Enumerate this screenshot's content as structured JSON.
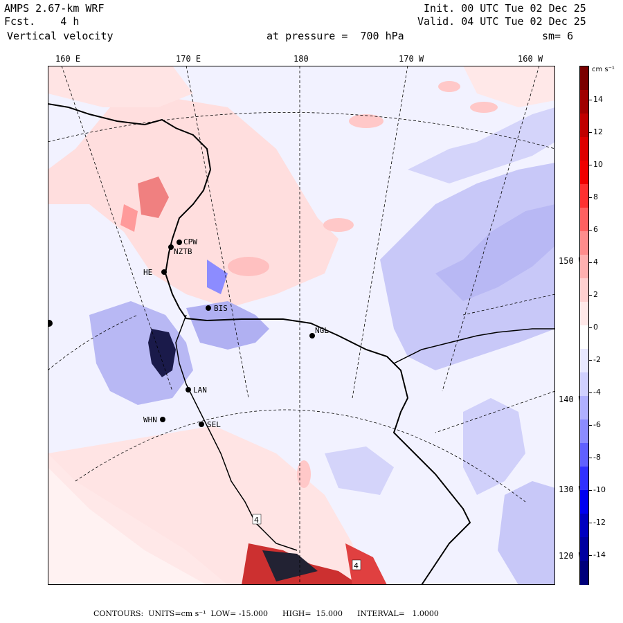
{
  "header": {
    "model": "AMPS 2.67-km WRF",
    "fcst": "Fcst.    4 h",
    "field": "Vertical velocity",
    "init": "Init. 00 UTC Tue 02 Dec 25",
    "valid": "Valid. 04 UTC Tue 02 Dec 25",
    "pressure": "at pressure =  700 hPa",
    "smooth": "sm= 6"
  },
  "lon_labels": [
    "160 E",
    "170 E",
    "180",
    "170 W",
    "160 W"
  ],
  "lat_labels_right": [
    "150 W",
    "140 W",
    "130 W",
    "120 W"
  ],
  "stations": [
    {
      "id": "CPW"
    },
    {
      "id": "NZTB"
    },
    {
      "id": "HE"
    },
    {
      "id": "BIS"
    },
    {
      "id": "NGL"
    },
    {
      "id": "LAN"
    },
    {
      "id": "WHN"
    },
    {
      "id": "SEL"
    }
  ],
  "contour_labels": [
    "4",
    "4"
  ],
  "colorbar": {
    "units": "cm s⁻¹",
    "labels": [
      "14",
      "12",
      "10",
      "8",
      "6",
      "4",
      "2",
      "0",
      "-2",
      "-4",
      "-6",
      "-8",
      "-10",
      "-12",
      "-14"
    ],
    "colors": [
      "#7a0000",
      "#a00000",
      "#c00000",
      "#dd0000",
      "#f00000",
      "#ff3030",
      "#ff6060",
      "#ff8c8c",
      "#ffb0b0",
      "#ffd0d0",
      "#ffe8e8",
      "#ffffff",
      "#e8e8ff",
      "#d0d0ff",
      "#b0b0ff",
      "#8c8cff",
      "#6060ff",
      "#3030ff",
      "#0000f0",
      "#0000c0",
      "#0000a0",
      "#00007a"
    ]
  },
  "footer": {
    "text": "CONTOURS:  UNITS=cm s⁻¹  LOW= -15.000      HIGH=  15.000      INTERVAL=   1.0000"
  }
}
